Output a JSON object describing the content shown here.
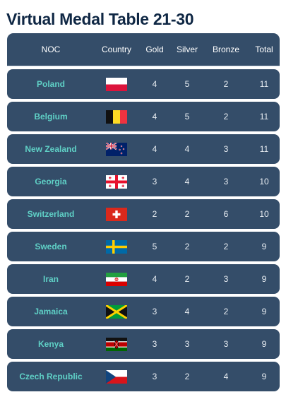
{
  "title": "Virtual Medal Table 21-30",
  "headers": {
    "noc": "NOC",
    "country": "Country",
    "gold": "Gold",
    "silver": "Silver",
    "bronze": "Bronze",
    "total": "Total"
  },
  "rows": [
    {
      "noc": "Poland",
      "flag": "poland-flag-icon",
      "gold": "4",
      "silver": "5",
      "bronze": "2",
      "total": "11"
    },
    {
      "noc": "Belgium",
      "flag": "belgium-flag-icon",
      "gold": "4",
      "silver": "5",
      "bronze": "2",
      "total": "11"
    },
    {
      "noc": "New Zealand",
      "flag": "new-zealand-flag-icon",
      "gold": "4",
      "silver": "4",
      "bronze": "3",
      "total": "11"
    },
    {
      "noc": "Georgia",
      "flag": "georgia-flag-icon",
      "gold": "3",
      "silver": "4",
      "bronze": "3",
      "total": "10"
    },
    {
      "noc": "Switzerland",
      "flag": "switzerland-flag-icon",
      "gold": "2",
      "silver": "2",
      "bronze": "6",
      "total": "10"
    },
    {
      "noc": "Sweden",
      "flag": "sweden-flag-icon",
      "gold": "5",
      "silver": "2",
      "bronze": "2",
      "total": "9"
    },
    {
      "noc": "Iran",
      "flag": "iran-flag-icon",
      "gold": "4",
      "silver": "2",
      "bronze": "3",
      "total": "9"
    },
    {
      "noc": "Jamaica",
      "flag": "jamaica-flag-icon",
      "gold": "3",
      "silver": "4",
      "bronze": "2",
      "total": "9"
    },
    {
      "noc": "Kenya",
      "flag": "kenya-flag-icon",
      "gold": "3",
      "silver": "3",
      "bronze": "3",
      "total": "9"
    },
    {
      "noc": "Czech Republic",
      "flag": "czech-republic-flag-icon",
      "gold": "3",
      "silver": "2",
      "bronze": "4",
      "total": "9"
    }
  ],
  "colors": {
    "title": "#0f2744",
    "row_bg": "#344d69",
    "noc_text": "#5fd0c6"
  }
}
